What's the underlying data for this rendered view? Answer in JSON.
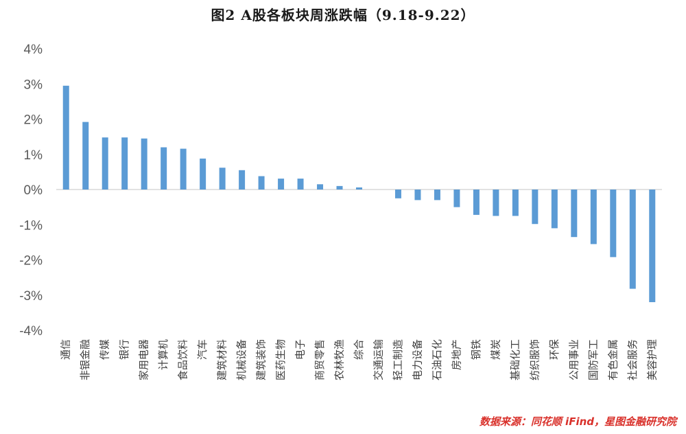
{
  "chart_data": {
    "type": "bar",
    "title": "图2  A股各板块周涨跌幅（9.18-9.22）",
    "categories": [
      "通信",
      "非银金融",
      "传媒",
      "银行",
      "家用电器",
      "计算机",
      "食品饮料",
      "汽车",
      "建筑材料",
      "机械设备",
      "建筑装饰",
      "医药生物",
      "电子",
      "商贸零售",
      "农林牧渔",
      "综合",
      "交通运输",
      "轻工制造",
      "电力设备",
      "石油石化",
      "房地产",
      "钢铁",
      "煤炭",
      "基础化工",
      "纺织服饰",
      "环保",
      "公用事业",
      "国防军工",
      "有色金属",
      "社会服务",
      "美容护理"
    ],
    "values": [
      2.95,
      1.92,
      1.48,
      1.48,
      1.45,
      1.2,
      1.16,
      0.88,
      0.62,
      0.55,
      0.38,
      0.31,
      0.31,
      0.15,
      0.1,
      0.06,
      0.0,
      -0.25,
      -0.3,
      -0.3,
      -0.5,
      -0.72,
      -0.75,
      -0.75,
      -0.98,
      -1.1,
      -1.35,
      -1.55,
      -1.92,
      -2.82,
      -3.2
    ],
    "ylim": [
      -4,
      4
    ],
    "yticks": [
      "4%",
      "3%",
      "2%",
      "1%",
      "0%",
      "-1%",
      "-2%",
      "-3%",
      "-4%"
    ],
    "bar_color": "#5b9bd5",
    "grid": false,
    "legend": "none"
  },
  "source": "数据来源：同花顺 iFind，星图金融研究院"
}
